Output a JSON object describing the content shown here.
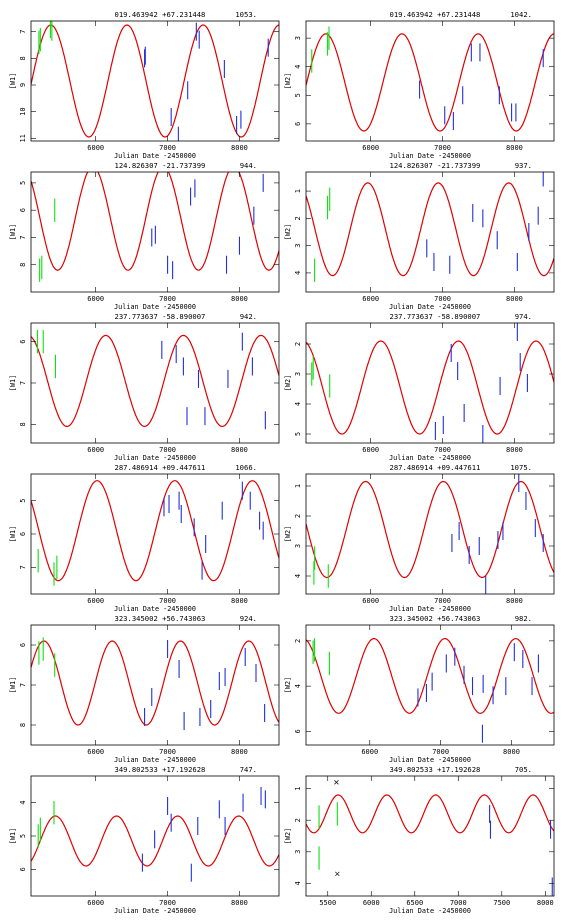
{
  "chart_data": [
    {
      "type": "scatter",
      "title": "019.463942 +67.231448",
      "count": "1053.",
      "ylabel": "[W1]",
      "xlabel": "Julian Date -2450000",
      "xlim": [
        5100,
        8550
      ],
      "ylim": [
        6.6,
        11.1
      ],
      "yticks": [
        7,
        8,
        9,
        10,
        11
      ],
      "xticks": [
        6000,
        7000,
        8000
      ],
      "model": {
        "mean": 8.85,
        "amp": 2.1,
        "period": 1060,
        "peak_jd": 6435
      },
      "neowise": [
        [
          6680,
          8.0
        ],
        [
          6690,
          7.9
        ],
        [
          7050,
          10.2
        ],
        [
          7150,
          10.9
        ],
        [
          7280,
          9.2
        ],
        [
          7400,
          7.0
        ],
        [
          7440,
          7.3
        ],
        [
          7790,
          8.4
        ],
        [
          7960,
          10.5
        ],
        [
          8020,
          10.3
        ],
        [
          8400,
          7.6
        ]
      ],
      "allwise": [
        [
          5210,
          7.4
        ],
        [
          5230,
          7.3
        ],
        [
          5370,
          6.8
        ],
        [
          5390,
          6.9
        ]
      ]
    },
    {
      "type": "scatter",
      "title": "019.463942 +67.231448",
      "count": "1042.",
      "ylabel": "[W2]",
      "xlabel": "Julian Date -2450000",
      "xlim": [
        5100,
        8550
      ],
      "ylim": [
        2.4,
        6.6
      ],
      "yticks": [
        3,
        4,
        5,
        6
      ],
      "xticks": [
        6000,
        7000,
        8000
      ],
      "model": {
        "mean": 4.55,
        "amp": 1.7,
        "period": 1060,
        "peak_jd": 6435
      },
      "neowise": [
        [
          6680,
          4.8
        ],
        [
          7030,
          5.7
        ],
        [
          7150,
          5.9
        ],
        [
          7280,
          5.0
        ],
        [
          7400,
          3.5
        ],
        [
          7520,
          3.5
        ],
        [
          7790,
          5.0
        ],
        [
          7960,
          5.6
        ],
        [
          8020,
          5.6
        ],
        [
          8400,
          3.7
        ]
      ],
      "allwise": [
        [
          5180,
          3.8
        ],
        [
          5400,
          3.2
        ],
        [
          5420,
          3.0
        ]
      ]
    },
    {
      "type": "scatter",
      "title": "124.826307 -21.737399",
      "count": "944.",
      "ylabel": "[W1]",
      "xlabel": "Julian Date -2450000",
      "xlim": [
        5100,
        8550
      ],
      "ylim": [
        4.6,
        9.0
      ],
      "yticks": [
        5,
        6,
        7,
        8
      ],
      "xticks": [
        6000,
        7000,
        8000
      ],
      "model": {
        "mean": 6.3,
        "amp": 1.9,
        "period": 980,
        "peak_jd": 5960
      },
      "neowise": [
        [
          6780,
          7.0
        ],
        [
          6830,
          6.9
        ],
        [
          7000,
          8.0
        ],
        [
          7070,
          8.2
        ],
        [
          7320,
          5.5
        ],
        [
          7380,
          5.2
        ],
        [
          7820,
          8.0
        ],
        [
          8000,
          7.3
        ],
        [
          8200,
          6.2
        ],
        [
          8330,
          5.0
        ]
      ],
      "allwise": [
        [
          5220,
          8.2
        ],
        [
          5250,
          8.1
        ],
        [
          5430,
          6.0
        ]
      ]
    },
    {
      "type": "scatter",
      "title": "124.826307 -21.737399",
      "count": "937.",
      "ylabel": "[W2]",
      "xlabel": "Julian Date -2450000",
      "xlim": [
        5100,
        8550
      ],
      "ylim": [
        0.3,
        4.7
      ],
      "yticks": [
        1,
        2,
        3,
        4
      ],
      "xticks": [
        6000,
        7000,
        8000
      ],
      "model": {
        "mean": 2.4,
        "amp": 1.7,
        "period": 980,
        "peak_jd": 5960
      },
      "neowise": [
        [
          6780,
          3.1
        ],
        [
          6880,
          3.6
        ],
        [
          7100,
          3.7
        ],
        [
          7420,
          1.8
        ],
        [
          7560,
          2.0
        ],
        [
          7760,
          2.8
        ],
        [
          8040,
          3.6
        ],
        [
          8200,
          2.5
        ],
        [
          8330,
          1.9
        ],
        [
          8400,
          0.5
        ]
      ],
      "allwise": [
        [
          5220,
          3.9
        ],
        [
          5400,
          1.6
        ],
        [
          5430,
          1.3
        ]
      ]
    },
    {
      "type": "scatter",
      "title": "237.773637 -58.890007",
      "count": "942.",
      "ylabel": "[W1]",
      "xlabel": "Julian Date -2450000",
      "xlim": [
        5100,
        8550
      ],
      "ylim": [
        5.55,
        8.45
      ],
      "yticks": [
        6,
        7,
        8
      ],
      "xticks": [
        6000,
        7000,
        8000
      ],
      "model": {
        "mean": 6.95,
        "amp": 1.1,
        "period": 1080,
        "peak_jd": 6140
      },
      "neowise": [
        [
          6920,
          6.2
        ],
        [
          7120,
          6.3
        ],
        [
          7220,
          6.6
        ],
        [
          7270,
          7.8
        ],
        [
          7430,
          6.9
        ],
        [
          7520,
          7.8
        ],
        [
          7840,
          6.9
        ],
        [
          8040,
          6.0
        ],
        [
          8180,
          6.6
        ],
        [
          8360,
          7.9
        ]
      ],
      "allwise": [
        [
          5190,
          6.0
        ],
        [
          5270,
          6.0
        ],
        [
          5440,
          6.6
        ]
      ]
    },
    {
      "type": "scatter",
      "title": "237.773637 -58.890007",
      "count": "974.",
      "ylabel": "[W2]",
      "xlabel": "Julian Date -2450000",
      "xlim": [
        5100,
        8550
      ],
      "ylim": [
        1.3,
        5.3
      ],
      "yticks": [
        2,
        3,
        4,
        5
      ],
      "xticks": [
        6000,
        7000,
        8000
      ],
      "model": {
        "mean": 3.45,
        "amp": 1.55,
        "period": 1080,
        "peak_jd": 6140
      },
      "neowise": [
        [
          6900,
          4.9
        ],
        [
          7010,
          4.7
        ],
        [
          7120,
          2.3
        ],
        [
          7210,
          2.9
        ],
        [
          7300,
          4.3
        ],
        [
          7560,
          5.0
        ],
        [
          7800,
          3.4
        ],
        [
          8040,
          1.6
        ],
        [
          8080,
          2.6
        ],
        [
          8180,
          3.3
        ]
      ],
      "allwise": [
        [
          5180,
          3.0
        ],
        [
          5200,
          2.8
        ],
        [
          5430,
          3.4
        ]
      ]
    },
    {
      "type": "scatter",
      "title": "287.486914 +09.447611",
      "count": "1066.",
      "ylabel": "[W1]",
      "xlabel": "Julian Date -2450000",
      "xlim": [
        5100,
        8550
      ],
      "ylim": [
        4.2,
        7.8
      ],
      "yticks": [
        5,
        6,
        7
      ],
      "xticks": [
        6000,
        7000,
        8000
      ],
      "model": {
        "mean": 5.9,
        "amp": 1.5,
        "period": 1080,
        "peak_jd": 6020
      },
      "neowise": [
        [
          6950,
          5.2
        ],
        [
          7020,
          5.1
        ],
        [
          7160,
          5.0
        ],
        [
          7190,
          5.4
        ],
        [
          7370,
          5.8
        ],
        [
          7480,
          7.1
        ],
        [
          7530,
          6.3
        ],
        [
          7760,
          5.3
        ],
        [
          8040,
          4.7
        ],
        [
          8150,
          5.0
        ],
        [
          8280,
          5.6
        ],
        [
          8330,
          5.9
        ]
      ],
      "allwise": [
        [
          5200,
          6.8
        ],
        [
          5420,
          7.2
        ],
        [
          5460,
          7.0
        ]
      ]
    },
    {
      "type": "scatter",
      "title": "287.486914 +09.447611",
      "count": "1075.",
      "ylabel": "[W2]",
      "xlabel": "Julian Date -2450000",
      "xlim": [
        5100,
        8550
      ],
      "ylim": [
        0.6,
        4.6
      ],
      "yticks": [
        1,
        2,
        3,
        4
      ],
      "xticks": [
        6000,
        7000,
        8000
      ],
      "model": {
        "mean": 2.45,
        "amp": 1.6,
        "period": 1080,
        "peak_jd": 5930
      },
      "neowise": [
        [
          7130,
          2.9
        ],
        [
          7230,
          2.5
        ],
        [
          7370,
          3.3
        ],
        [
          7510,
          3.0
        ],
        [
          7600,
          4.3
        ],
        [
          7770,
          2.8
        ],
        [
          7840,
          2.5
        ],
        [
          8060,
          0.9
        ],
        [
          8160,
          1.5
        ],
        [
          8290,
          2.4
        ],
        [
          8400,
          2.9
        ]
      ],
      "allwise": [
        [
          5210,
          3.9
        ],
        [
          5220,
          3.4
        ],
        [
          5410,
          4.0
        ]
      ]
    },
    {
      "type": "scatter",
      "title": "323.345002 +56.743063",
      "count": "924.",
      "ylabel": "[W1]",
      "xlabel": "Julian Date -2450000",
      "xlim": [
        5100,
        8550
      ],
      "ylim": [
        5.5,
        8.5
      ],
      "yticks": [
        6,
        7,
        8
      ],
      "xticks": [
        6000,
        7000,
        8000
      ],
      "model": {
        "mean": 6.95,
        "amp": 1.05,
        "period": 950,
        "peak_jd": 5280
      },
      "neowise": [
        [
          6680,
          7.8
        ],
        [
          6780,
          7.3
        ],
        [
          7000,
          6.1
        ],
        [
          7160,
          6.6
        ],
        [
          7230,
          7.9
        ],
        [
          7450,
          7.8
        ],
        [
          7600,
          7.6
        ],
        [
          7720,
          6.9
        ],
        [
          7800,
          6.8
        ],
        [
          8080,
          6.3
        ],
        [
          8230,
          6.7
        ],
        [
          8350,
          7.7
        ]
      ],
      "allwise": [
        [
          5210,
          6.2
        ],
        [
          5270,
          6.1
        ],
        [
          5430,
          6.5
        ]
      ]
    },
    {
      "type": "scatter",
      "title": "323.345002 +56.743063",
      "count": "982.",
      "ylabel": "[W2]",
      "xlabel": "Julian Date -2450000",
      "xlim": [
        5100,
        8600
      ],
      "ylim": [
        1.3,
        6.6
      ],
      "yticks": [
        2,
        4,
        6
      ],
      "xticks": [
        6000,
        7000,
        8000
      ],
      "model": {
        "mean": 3.55,
        "amp": 1.65,
        "period": 1000,
        "peak_jd": 6060
      },
      "neowise": [
        [
          6680,
          4.5
        ],
        [
          6800,
          4.3
        ],
        [
          6880,
          3.8
        ],
        [
          7080,
          3.0
        ],
        [
          7200,
          2.7
        ],
        [
          7330,
          3.5
        ],
        [
          7450,
          4.0
        ],
        [
          7590,
          6.1
        ],
        [
          7600,
          3.9
        ],
        [
          7740,
          4.4
        ],
        [
          7920,
          4.0
        ],
        [
          8040,
          2.5
        ],
        [
          8160,
          2.8
        ],
        [
          8290,
          4.0
        ],
        [
          8380,
          3.0
        ]
      ],
      "allwise": [
        [
          5200,
          2.5
        ],
        [
          5220,
          2.4
        ],
        [
          5430,
          3.0
        ]
      ]
    },
    {
      "type": "scatter",
      "title": "349.802533 +17.192628",
      "count": "747.",
      "ylabel": "[W1]",
      "xlabel": "Julian Date -2450000",
      "xlim": [
        5100,
        8550
      ],
      "ylim": [
        3.2,
        6.8
      ],
      "yticks": [
        4,
        5,
        6
      ],
      "xticks": [
        6000,
        7000,
        8000
      ],
      "model": {
        "mean": 5.15,
        "amp": 0.75,
        "period": 850,
        "peak_jd": 5440
      },
      "neowise": [
        [
          6650,
          5.8
        ],
        [
          6820,
          5.1
        ],
        [
          7000,
          4.1
        ],
        [
          7050,
          4.6
        ],
        [
          7330,
          6.1
        ],
        [
          7420,
          4.7
        ],
        [
          7720,
          4.2
        ],
        [
          7800,
          4.7
        ],
        [
          8050,
          4.0
        ],
        [
          8300,
          3.8
        ],
        [
          8360,
          3.9
        ]
      ],
      "allwise": [
        [
          5200,
          5.0
        ],
        [
          5230,
          4.8
        ],
        [
          5420,
          4.3
        ]
      ]
    },
    {
      "type": "scatter",
      "title": "349.802533 +17.192628",
      "count": "705.",
      "ylabel": "[W2]",
      "xlabel": "Julian Date -2450000",
      "xlim": [
        5250,
        8100
      ],
      "ylim": [
        0.6,
        4.4
      ],
      "yticks": [
        1,
        2,
        3,
        4
      ],
      "xticks": [
        5500,
        6000,
        6500,
        7000,
        7500,
        8000
      ],
      "xtick_labels": [
        "5500",
        "6000",
        "6500",
        "7000",
        "7500",
        "8000"
      ],
      "model": {
        "mean": 1.8,
        "amp": 0.6,
        "period": 560,
        "peak_jd": 5620
      },
      "neowise": [
        [
          7360,
          1.8
        ],
        [
          7370,
          2.3
        ],
        [
          8060,
          2.3
        ],
        [
          8080,
          4.1
        ]
      ],
      "allwise": [
        [
          5400,
          1.9
        ],
        [
          5400,
          3.2
        ],
        [
          5610,
          1.8
        ]
      ],
      "outliers": [
        [
          5600,
          0.8
        ],
        [
          5610,
          3.7
        ]
      ]
    }
  ]
}
